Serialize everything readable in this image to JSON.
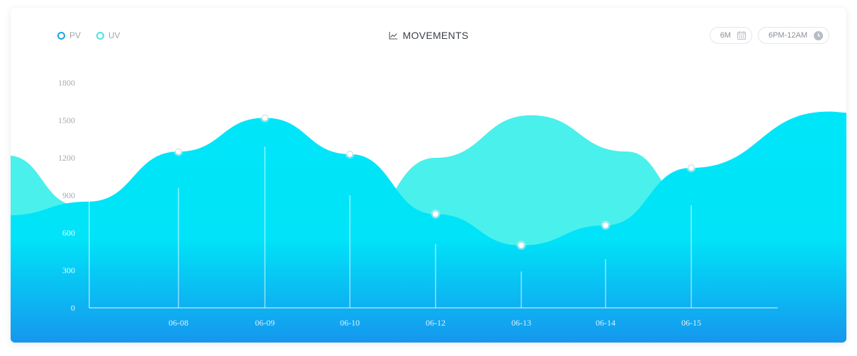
{
  "header": {
    "title": "MOVEMENTS",
    "title_icon": "line-chart-icon",
    "legend": [
      {
        "label": "PV",
        "color": "#1aa7e0"
      },
      {
        "label": "UV",
        "color": "#4ae3e5"
      }
    ],
    "range_label": "6M",
    "range_icon": "calendar-icon",
    "time_label": "6PM-12AM",
    "time_icon": "clock-icon"
  },
  "chart_data": {
    "type": "area",
    "categories": [
      "06-08",
      "06-09",
      "06-10",
      "06-12",
      "06-13",
      "06-14",
      "06-15"
    ],
    "yticks": [
      0,
      300,
      600,
      900,
      1200,
      1500,
      1800
    ],
    "ylim": [
      0,
      1800
    ],
    "grid": false,
    "series": [
      {
        "name": "PV",
        "color": "#00e5f8",
        "values": [
          1250,
          1520,
          1230,
          750,
          500,
          660,
          1120
        ]
      },
      {
        "name": "UV",
        "color": "#4af0ec",
        "values": [
          950,
          1450,
          1100,
          1450,
          1520,
          1050,
          1350
        ]
      }
    ],
    "bar_values": [
      960,
      1290,
      900,
      510,
      290,
      390,
      820
    ]
  }
}
